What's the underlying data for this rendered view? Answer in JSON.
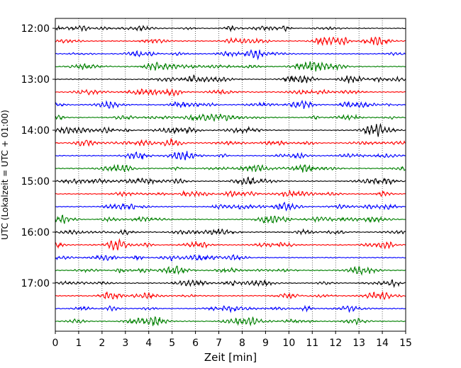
{
  "chart_data": {
    "type": "line",
    "title": "",
    "xlabel": "Zeit  [min]",
    "ylabel": "UTC (Lokalzeit = UTC + 01:00)",
    "xlim": [
      0,
      15
    ],
    "x_ticks": [
      "0",
      "1",
      "2",
      "3",
      "4",
      "5",
      "6",
      "7",
      "8",
      "9",
      "10",
      "11",
      "12",
      "13",
      "14",
      "15"
    ],
    "y_tick_labels": [
      "12:00",
      "13:00",
      "14:00",
      "15:00",
      "16:00",
      "17:00"
    ],
    "trace_rows": [
      "12:00",
      "12:15",
      "12:30",
      "12:45",
      "13:00",
      "13:15",
      "13:30",
      "13:45",
      "14:00",
      "14:15",
      "14:30",
      "14:45",
      "15:00",
      "15:15",
      "15:30",
      "15:45",
      "16:00",
      "16:15",
      "16:30",
      "16:45",
      "17:00",
      "17:15",
      "17:30",
      "17:45"
    ],
    "trace_colors": [
      "#000000",
      "#ff0000",
      "#0000ff",
      "#008000"
    ],
    "vertical_grid": "dotted, every minute",
    "legend": "none"
  }
}
